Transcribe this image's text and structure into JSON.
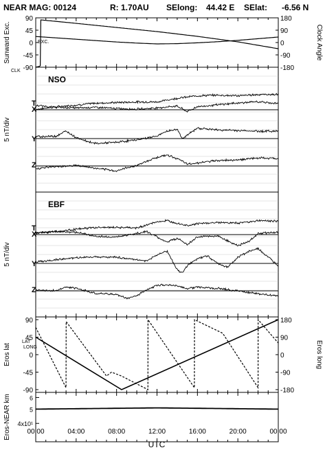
{
  "header": {
    "title": "NEAR MAG: 00124",
    "r": "R: 1.70AU",
    "selong_label": "SElong:",
    "selong_value": "44.42 E",
    "selat_label": "SElat:",
    "selat_value": "-6.56 N"
  },
  "colors": {
    "trace": "#000000",
    "grid": "#bbbbbb",
    "background": "#ffffff"
  },
  "chart_data": [
    {
      "id": "sunward-clock",
      "type": "line",
      "ylabel_left": "Sunward Exc.",
      "ylabel_right": "Clock Angle",
      "yticks_left": [
        "90",
        "45",
        "0",
        "-45",
        "-90"
      ],
      "yticks_right": [
        "180",
        "90",
        "0",
        "-90",
        "-180"
      ],
      "ylim_left": [
        -90,
        90
      ],
      "ylim_right": [
        -180,
        180
      ],
      "x_hours": [
        0,
        24
      ],
      "series": [
        {
          "name": "EXC.",
          "axis": "left",
          "x": [
            0,
            4,
            8,
            10,
            12,
            14,
            16,
            18,
            20,
            24
          ],
          "y": [
            22,
            12,
            2,
            -2,
            -5,
            -4,
            -1,
            3,
            8,
            20
          ]
        },
        {
          "name": "CLK",
          "axis": "right",
          "x": [
            0,
            0.3,
            0.45,
            0.5,
            4,
            8,
            12,
            16,
            20,
            24
          ],
          "y": [
            -180,
            -175,
            -170,
            165,
            140,
            110,
            80,
            45,
            5,
            -45
          ]
        }
      ]
    },
    {
      "id": "nso",
      "type": "line",
      "panel_label": "NSO",
      "ylabel": "5 nT/div",
      "x_hours": [
        0,
        24
      ],
      "series": [
        {
          "name": "T",
          "x": [
            0,
            2,
            4,
            6,
            8,
            10,
            12,
            14,
            16,
            18,
            20,
            22,
            24
          ],
          "y": [
            -0.6,
            -0.2,
            0.1,
            0.4,
            0.5,
            0.6,
            0.6,
            1.2,
            1.6,
            1.7,
            1.6,
            1.8,
            1.8
          ]
        },
        {
          "name": "X",
          "x": [
            0,
            2,
            4,
            6,
            8,
            10,
            12,
            14,
            15,
            16,
            18,
            20,
            22,
            24
          ],
          "y": [
            0.7,
            0.4,
            0.3,
            0.4,
            0.2,
            0.1,
            0.3,
            0.6,
            -0.3,
            0.5,
            0.8,
            1.1,
            1.3,
            1.0
          ]
        },
        {
          "name": "Y",
          "x": [
            0,
            2,
            3,
            4,
            5,
            6,
            8,
            10,
            11,
            12,
            13,
            14,
            14.5,
            16,
            18,
            20,
            22,
            24
          ],
          "y": [
            0.3,
            0.4,
            1.2,
            0.2,
            -0.4,
            -0.8,
            -0.6,
            -0.2,
            0.1,
            0.4,
            1.2,
            1.5,
            0.0,
            1.7,
            1.4,
            1.3,
            1.2,
            1.2
          ]
        },
        {
          "name": "Z",
          "x": [
            0,
            2,
            4,
            6,
            8,
            9,
            10,
            11,
            12,
            13,
            14,
            15,
            16,
            18,
            20,
            22,
            24
          ],
          "y": [
            -0.4,
            -0.1,
            0.1,
            -0.4,
            -0.8,
            -0.3,
            0.1,
            0.8,
            1.4,
            1.8,
            1.2,
            0.3,
            0.5,
            0.9,
            1.0,
            1.3,
            1.2
          ]
        }
      ]
    },
    {
      "id": "ebf",
      "type": "line",
      "panel_label": "EBF",
      "ylabel": "5 nT/div",
      "x_hours": [
        0,
        24
      ],
      "series": [
        {
          "name": "T",
          "x": [
            0,
            2,
            4,
            6,
            8,
            10,
            11,
            12,
            13,
            14,
            15,
            16,
            18,
            20,
            22,
            24
          ],
          "y": [
            -0.4,
            -0.2,
            0.2,
            0.5,
            0.5,
            0.4,
            0.9,
            1.4,
            1.6,
            1.2,
            0.8,
            1.1,
            1.3,
            1.2,
            1.6,
            1.5
          ]
        },
        {
          "name": "X",
          "x": [
            0,
            2,
            4,
            6,
            8,
            10,
            11,
            12,
            13,
            14,
            15,
            16,
            18,
            19,
            20,
            21,
            22,
            24
          ],
          "y": [
            0.3,
            0.5,
            0.4,
            -0.3,
            -0.4,
            0.2,
            0.5,
            -0.4,
            -1.2,
            -0.6,
            -1.6,
            -0.4,
            -0.2,
            -1.0,
            -1.8,
            -1.2,
            0.2,
            0.4
          ]
        },
        {
          "name": "Y",
          "x": [
            0,
            2,
            4,
            6,
            8,
            10,
            11,
            12,
            13,
            13.5,
            14,
            14.5,
            15,
            16,
            17,
            18,
            19,
            20,
            21,
            22,
            24
          ],
          "y": [
            0.2,
            0.6,
            0.9,
            1.1,
            1.0,
            0.6,
            0.4,
            1.4,
            2.0,
            0.5,
            -1.0,
            -1.6,
            -0.4,
            0.8,
            1.2,
            0.0,
            -0.6,
            1.0,
            1.9,
            2.4,
            -0.4
          ]
        },
        {
          "name": "Z",
          "x": [
            0,
            2,
            3,
            4,
            6,
            8,
            9,
            10,
            11,
            12,
            13,
            14,
            15,
            16,
            18,
            20,
            22,
            24
          ],
          "y": [
            0.2,
            0.0,
            0.6,
            0.4,
            -0.4,
            -0.6,
            -1.2,
            -0.8,
            0.2,
            0.9,
            1.0,
            0.8,
            0.4,
            0.6,
            0.4,
            0.0,
            -0.5,
            -0.8
          ]
        }
      ]
    },
    {
      "id": "eros-lat-long",
      "type": "line",
      "ylabel_left": "Eros lat",
      "ylabel_right": "Eros long",
      "yticks_left": [
        "90",
        "45",
        "0",
        "-45",
        "-90"
      ],
      "yticks_right": [
        "180",
        "90",
        "0",
        "-90",
        "-180"
      ],
      "ylim_left": [
        -90,
        90
      ],
      "ylim_right": [
        -180,
        180
      ],
      "x_hours": [
        0,
        24
      ],
      "series": [
        {
          "name": "LAT",
          "axis": "left",
          "x": [
            0,
            8.5,
            24
          ],
          "y": [
            45,
            -90,
            90
          ]
        },
        {
          "name": "LONG",
          "axis": "right",
          "x": [
            0,
            3,
            3.01,
            7,
            7.5,
            8.5,
            11.1,
            11.11,
            15.7,
            15.71,
            18.5,
            22,
            22.01,
            23.5,
            24
          ],
          "y": [
            140,
            -170,
            170,
            -110,
            -90,
            -110,
            -180,
            180,
            -170,
            180,
            110,
            -170,
            180,
            90,
            60
          ]
        }
      ]
    },
    {
      "id": "eros-near-km",
      "type": "line",
      "ylabel": "Eros-NEAR km",
      "yticks": [
        "6",
        "5",
        "4x10¹"
      ],
      "ylim": [
        3,
        6.5
      ],
      "log_scale": true,
      "x_hours": [
        0,
        24
      ],
      "series": [
        {
          "name": "range",
          "x": [
            0,
            6,
            12,
            18,
            24
          ],
          "y": [
            5.0,
            5.05,
            5.1,
            5.05,
            5.0
          ]
        }
      ]
    }
  ],
  "x_axis": {
    "tick_labels": [
      "00:00",
      "04:00",
      "08:00",
      "12:00",
      "16:00",
      "20:00",
      "00:00"
    ],
    "label": "UTC"
  },
  "panel_letters": {
    "exc": "EXC.",
    "clk": "CLK",
    "lat": "LAT",
    "long": "LONG"
  }
}
